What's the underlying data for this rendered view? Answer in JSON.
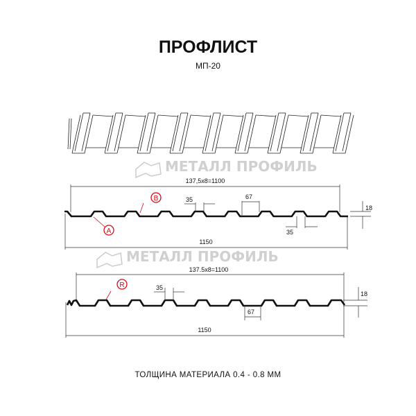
{
  "title": "ПРОФЛИСТ",
  "subtitle": "МП-20",
  "watermark": "МЕТАЛЛ ПРОФИЛЬ",
  "profile_a": {
    "pitch_dim": "137,5x8=1100",
    "width_dim": "1150",
    "height_dim": "18",
    "top_width_dim": "35",
    "bottom_width_dim": "35",
    "rib_pitch_dim": "67",
    "marker_a": "A",
    "marker_b": "B"
  },
  "profile_r": {
    "pitch_dim": "137.5x8=1100",
    "width_dim": "1150",
    "height_dim": "18",
    "top_width_dim": "35",
    "rib_pitch_dim": "67",
    "marker_r": "R"
  },
  "footer": "ТОЛЩИНА МАТЕРИАЛА 0.4 - 0.8 ММ",
  "colors": {
    "marker": "#e30613",
    "profile": "#111111",
    "watermark": "#c8c8c8"
  }
}
